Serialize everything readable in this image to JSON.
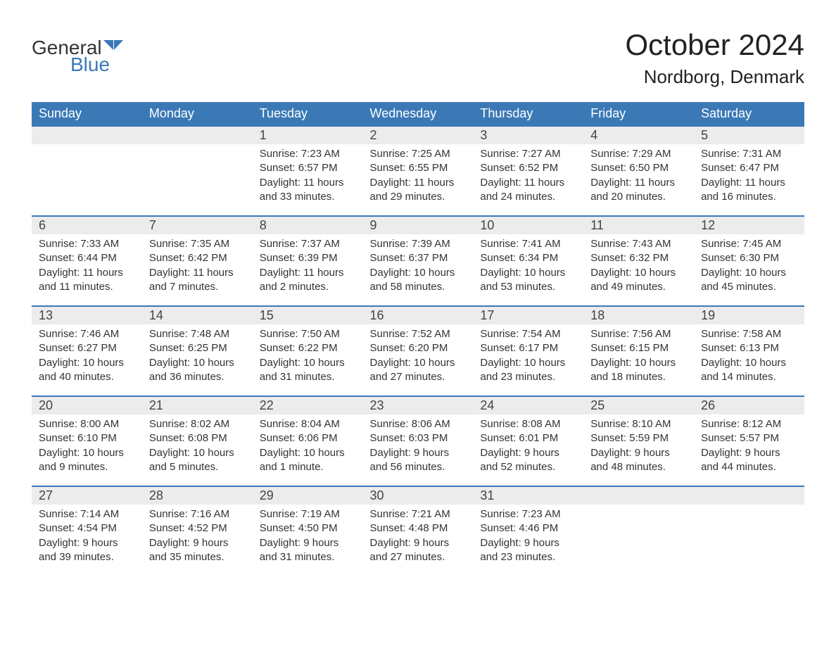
{
  "logo": {
    "general": "General",
    "blue": "Blue",
    "flag_color": "#3b79b6"
  },
  "title": "October 2024",
  "location": "Nordborg, Denmark",
  "colors": {
    "header_bg": "#3b79b6",
    "header_text": "#ffffff",
    "daynum_bg": "#ececec",
    "row_border": "#3b79b6",
    "body_text": "#333333",
    "background": "#ffffff"
  },
  "dayHeaders": [
    "Sunday",
    "Monday",
    "Tuesday",
    "Wednesday",
    "Thursday",
    "Friday",
    "Saturday"
  ],
  "weeks": [
    [
      {
        "day": "",
        "lines": []
      },
      {
        "day": "",
        "lines": []
      },
      {
        "day": "1",
        "lines": [
          "Sunrise: 7:23 AM",
          "Sunset: 6:57 PM",
          "Daylight: 11 hours",
          "and 33 minutes."
        ]
      },
      {
        "day": "2",
        "lines": [
          "Sunrise: 7:25 AM",
          "Sunset: 6:55 PM",
          "Daylight: 11 hours",
          "and 29 minutes."
        ]
      },
      {
        "day": "3",
        "lines": [
          "Sunrise: 7:27 AM",
          "Sunset: 6:52 PM",
          "Daylight: 11 hours",
          "and 24 minutes."
        ]
      },
      {
        "day": "4",
        "lines": [
          "Sunrise: 7:29 AM",
          "Sunset: 6:50 PM",
          "Daylight: 11 hours",
          "and 20 minutes."
        ]
      },
      {
        "day": "5",
        "lines": [
          "Sunrise: 7:31 AM",
          "Sunset: 6:47 PM",
          "Daylight: 11 hours",
          "and 16 minutes."
        ]
      }
    ],
    [
      {
        "day": "6",
        "lines": [
          "Sunrise: 7:33 AM",
          "Sunset: 6:44 PM",
          "Daylight: 11 hours",
          "and 11 minutes."
        ]
      },
      {
        "day": "7",
        "lines": [
          "Sunrise: 7:35 AM",
          "Sunset: 6:42 PM",
          "Daylight: 11 hours",
          "and 7 minutes."
        ]
      },
      {
        "day": "8",
        "lines": [
          "Sunrise: 7:37 AM",
          "Sunset: 6:39 PM",
          "Daylight: 11 hours",
          "and 2 minutes."
        ]
      },
      {
        "day": "9",
        "lines": [
          "Sunrise: 7:39 AM",
          "Sunset: 6:37 PM",
          "Daylight: 10 hours",
          "and 58 minutes."
        ]
      },
      {
        "day": "10",
        "lines": [
          "Sunrise: 7:41 AM",
          "Sunset: 6:34 PM",
          "Daylight: 10 hours",
          "and 53 minutes."
        ]
      },
      {
        "day": "11",
        "lines": [
          "Sunrise: 7:43 AM",
          "Sunset: 6:32 PM",
          "Daylight: 10 hours",
          "and 49 minutes."
        ]
      },
      {
        "day": "12",
        "lines": [
          "Sunrise: 7:45 AM",
          "Sunset: 6:30 PM",
          "Daylight: 10 hours",
          "and 45 minutes."
        ]
      }
    ],
    [
      {
        "day": "13",
        "lines": [
          "Sunrise: 7:46 AM",
          "Sunset: 6:27 PM",
          "Daylight: 10 hours",
          "and 40 minutes."
        ]
      },
      {
        "day": "14",
        "lines": [
          "Sunrise: 7:48 AM",
          "Sunset: 6:25 PM",
          "Daylight: 10 hours",
          "and 36 minutes."
        ]
      },
      {
        "day": "15",
        "lines": [
          "Sunrise: 7:50 AM",
          "Sunset: 6:22 PM",
          "Daylight: 10 hours",
          "and 31 minutes."
        ]
      },
      {
        "day": "16",
        "lines": [
          "Sunrise: 7:52 AM",
          "Sunset: 6:20 PM",
          "Daylight: 10 hours",
          "and 27 minutes."
        ]
      },
      {
        "day": "17",
        "lines": [
          "Sunrise: 7:54 AM",
          "Sunset: 6:17 PM",
          "Daylight: 10 hours",
          "and 23 minutes."
        ]
      },
      {
        "day": "18",
        "lines": [
          "Sunrise: 7:56 AM",
          "Sunset: 6:15 PM",
          "Daylight: 10 hours",
          "and 18 minutes."
        ]
      },
      {
        "day": "19",
        "lines": [
          "Sunrise: 7:58 AM",
          "Sunset: 6:13 PM",
          "Daylight: 10 hours",
          "and 14 minutes."
        ]
      }
    ],
    [
      {
        "day": "20",
        "lines": [
          "Sunrise: 8:00 AM",
          "Sunset: 6:10 PM",
          "Daylight: 10 hours",
          "and 9 minutes."
        ]
      },
      {
        "day": "21",
        "lines": [
          "Sunrise: 8:02 AM",
          "Sunset: 6:08 PM",
          "Daylight: 10 hours",
          "and 5 minutes."
        ]
      },
      {
        "day": "22",
        "lines": [
          "Sunrise: 8:04 AM",
          "Sunset: 6:06 PM",
          "Daylight: 10 hours",
          "and 1 minute."
        ]
      },
      {
        "day": "23",
        "lines": [
          "Sunrise: 8:06 AM",
          "Sunset: 6:03 PM",
          "Daylight: 9 hours",
          "and 56 minutes."
        ]
      },
      {
        "day": "24",
        "lines": [
          "Sunrise: 8:08 AM",
          "Sunset: 6:01 PM",
          "Daylight: 9 hours",
          "and 52 minutes."
        ]
      },
      {
        "day": "25",
        "lines": [
          "Sunrise: 8:10 AM",
          "Sunset: 5:59 PM",
          "Daylight: 9 hours",
          "and 48 minutes."
        ]
      },
      {
        "day": "26",
        "lines": [
          "Sunrise: 8:12 AM",
          "Sunset: 5:57 PM",
          "Daylight: 9 hours",
          "and 44 minutes."
        ]
      }
    ],
    [
      {
        "day": "27",
        "lines": [
          "Sunrise: 7:14 AM",
          "Sunset: 4:54 PM",
          "Daylight: 9 hours",
          "and 39 minutes."
        ]
      },
      {
        "day": "28",
        "lines": [
          "Sunrise: 7:16 AM",
          "Sunset: 4:52 PM",
          "Daylight: 9 hours",
          "and 35 minutes."
        ]
      },
      {
        "day": "29",
        "lines": [
          "Sunrise: 7:19 AM",
          "Sunset: 4:50 PM",
          "Daylight: 9 hours",
          "and 31 minutes."
        ]
      },
      {
        "day": "30",
        "lines": [
          "Sunrise: 7:21 AM",
          "Sunset: 4:48 PM",
          "Daylight: 9 hours",
          "and 27 minutes."
        ]
      },
      {
        "day": "31",
        "lines": [
          "Sunrise: 7:23 AM",
          "Sunset: 4:46 PM",
          "Daylight: 9 hours",
          "and 23 minutes."
        ]
      },
      {
        "day": "",
        "lines": []
      },
      {
        "day": "",
        "lines": []
      }
    ]
  ]
}
